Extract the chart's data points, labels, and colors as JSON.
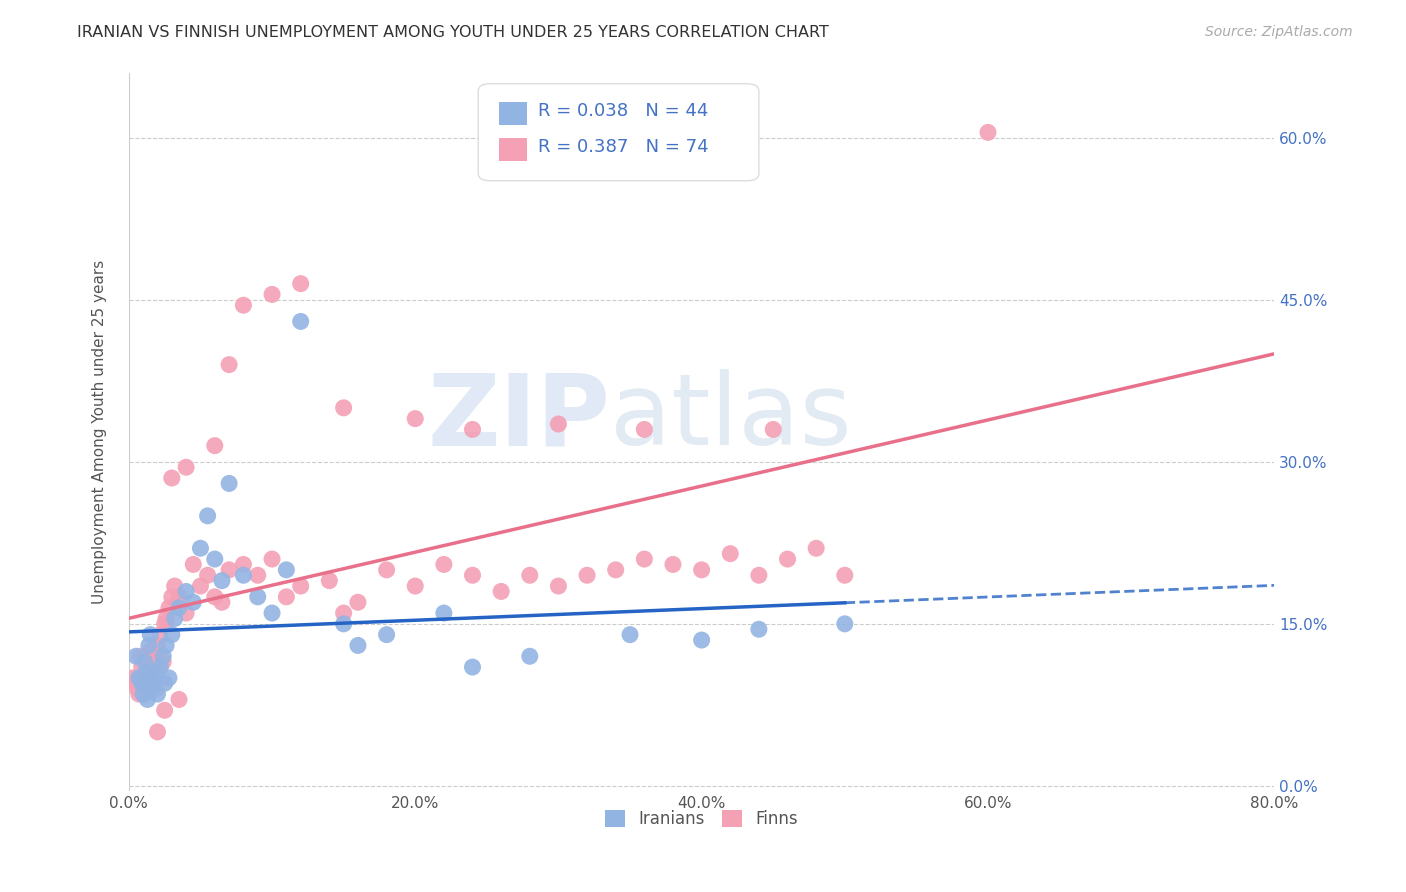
{
  "title": "IRANIAN VS FINNISH UNEMPLOYMENT AMONG YOUTH UNDER 25 YEARS CORRELATION CHART",
  "source": "Source: ZipAtlas.com",
  "ylabel": "Unemployment Among Youth under 25 years",
  "xlim": [
    0.0,
    0.8
  ],
  "ylim": [
    -0.005,
    0.66
  ],
  "xticks": [
    0.0,
    0.2,
    0.4,
    0.6,
    0.8
  ],
  "xtick_labels": [
    "0.0%",
    "20.0%",
    "40.0%",
    "60.0%",
    "80.0%"
  ],
  "yticks": [
    0.0,
    0.15,
    0.3,
    0.45,
    0.6
  ],
  "ytick_labels": [
    "0.0%",
    "15.0%",
    "30.0%",
    "45.0%",
    "60.0%"
  ],
  "iranians_R": "0.038",
  "iranians_N": "44",
  "finns_R": "0.387",
  "finns_N": "74",
  "iranians_color": "#92b4e3",
  "finns_color": "#f4a0b5",
  "iranians_line_color": "#2563c4",
  "finns_line_color": "#e8708a",
  "watermark_zip": "ZIP",
  "watermark_atlas": "atlas",
  "iranians_x": [
    0.005,
    0.007,
    0.009,
    0.01,
    0.011,
    0.012,
    0.013,
    0.014,
    0.015,
    0.016,
    0.017,
    0.018,
    0.019,
    0.02,
    0.022,
    0.024,
    0.025,
    0.026,
    0.028,
    0.03,
    0.032,
    0.035,
    0.04,
    0.045,
    0.05,
    0.055,
    0.06,
    0.065,
    0.07,
    0.08,
    0.09,
    0.1,
    0.11,
    0.12,
    0.15,
    0.16,
    0.18,
    0.22,
    0.24,
    0.28,
    0.35,
    0.4,
    0.44,
    0.5
  ],
  "iranians_y": [
    0.12,
    0.1,
    0.095,
    0.085,
    0.115,
    0.105,
    0.08,
    0.13,
    0.14,
    0.09,
    0.095,
    0.1,
    0.105,
    0.085,
    0.11,
    0.12,
    0.095,
    0.13,
    0.1,
    0.14,
    0.155,
    0.165,
    0.18,
    0.17,
    0.22,
    0.25,
    0.21,
    0.19,
    0.28,
    0.195,
    0.175,
    0.16,
    0.2,
    0.43,
    0.15,
    0.13,
    0.14,
    0.16,
    0.11,
    0.12,
    0.14,
    0.135,
    0.145,
    0.15
  ],
  "finns_x": [
    0.003,
    0.005,
    0.006,
    0.007,
    0.008,
    0.009,
    0.01,
    0.011,
    0.012,
    0.013,
    0.014,
    0.015,
    0.016,
    0.017,
    0.018,
    0.019,
    0.02,
    0.022,
    0.024,
    0.025,
    0.026,
    0.028,
    0.03,
    0.032,
    0.035,
    0.04,
    0.045,
    0.05,
    0.055,
    0.06,
    0.065,
    0.07,
    0.08,
    0.09,
    0.1,
    0.11,
    0.12,
    0.14,
    0.15,
    0.16,
    0.18,
    0.2,
    0.22,
    0.24,
    0.26,
    0.28,
    0.3,
    0.32,
    0.34,
    0.36,
    0.38,
    0.4,
    0.42,
    0.44,
    0.46,
    0.48,
    0.5,
    0.03,
    0.04,
    0.06,
    0.07,
    0.08,
    0.1,
    0.12,
    0.15,
    0.2,
    0.24,
    0.3,
    0.36,
    0.45,
    0.02,
    0.025,
    0.035,
    0.6
  ],
  "finns_y": [
    0.1,
    0.095,
    0.09,
    0.085,
    0.12,
    0.11,
    0.095,
    0.085,
    0.105,
    0.115,
    0.1,
    0.125,
    0.095,
    0.11,
    0.12,
    0.09,
    0.13,
    0.14,
    0.115,
    0.15,
    0.155,
    0.165,
    0.175,
    0.185,
    0.175,
    0.16,
    0.205,
    0.185,
    0.195,
    0.175,
    0.17,
    0.2,
    0.205,
    0.195,
    0.21,
    0.175,
    0.185,
    0.19,
    0.16,
    0.17,
    0.2,
    0.185,
    0.205,
    0.195,
    0.18,
    0.195,
    0.185,
    0.195,
    0.2,
    0.21,
    0.205,
    0.2,
    0.215,
    0.195,
    0.21,
    0.22,
    0.195,
    0.285,
    0.295,
    0.315,
    0.39,
    0.445,
    0.455,
    0.465,
    0.35,
    0.34,
    0.33,
    0.335,
    0.33,
    0.33,
    0.05,
    0.07,
    0.08,
    0.605
  ]
}
